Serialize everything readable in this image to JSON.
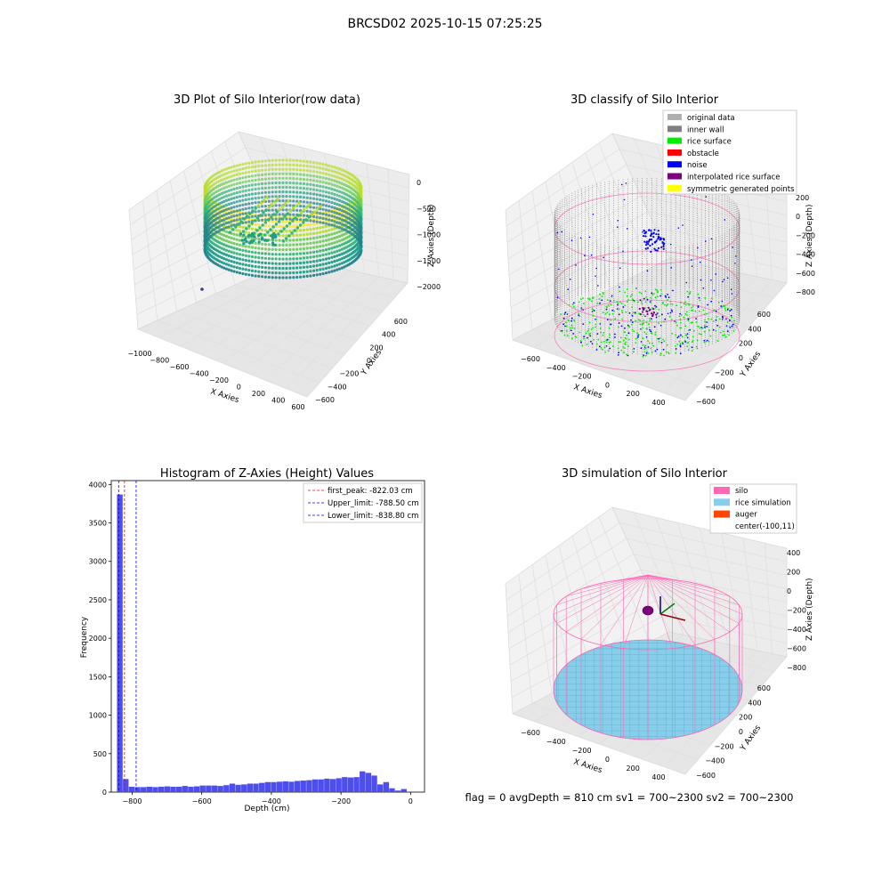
{
  "figure": {
    "suptitle": "BRCSD02 2025-10-15 07:25:25",
    "footer": "flag = 0     avgDepth = 810 cm  sv1 = 700~2300  sv2 = 700~2300"
  },
  "chart_data": [
    {
      "type": "scatter3d",
      "title": "3D Plot of Silo Interior(row data)",
      "xlabel": "X Axies",
      "ylabel": "Y Axies",
      "zlabel": "Z Axies (Depth)",
      "xticks": [
        "−1000",
        "−800",
        "−600",
        "−400",
        "−200",
        "0",
        "200",
        "400",
        "600"
      ],
      "yticks": [
        "−600",
        "−400",
        "−200",
        "0",
        "200",
        "400",
        "600"
      ],
      "zticks": [
        "0",
        "−500",
        "−1000",
        "−1500",
        "−2000"
      ],
      "xlim": [
        -1000,
        600
      ],
      "ylim": [
        -600,
        600
      ],
      "zlim": [
        -2300,
        0
      ],
      "colormap": "viridis"
    },
    {
      "type": "scatter3d",
      "title": "3D classify of Silo Interior",
      "xlabel": "X Axies",
      "ylabel": "Y Axies",
      "zlabel": "Z Axies (Depth)",
      "xticks": [
        "−600",
        "−400",
        "−200",
        "0",
        "200",
        "400"
      ],
      "yticks": [
        "−600",
        "−400",
        "−200",
        "0",
        "200",
        "400",
        "600"
      ],
      "zticks": [
        "200",
        "0",
        "−200",
        "−400",
        "−600",
        "−800"
      ],
      "legend": [
        {
          "label": "original data",
          "color": "#b0b0b0"
        },
        {
          "label": "inner wall",
          "color": "#808080"
        },
        {
          "label": "rice surface",
          "color": "#00ee00"
        },
        {
          "label": "obstacle",
          "color": "#ff0000"
        },
        {
          "label": "noise",
          "color": "#0000ff"
        },
        {
          "label": "interpolated rice surface",
          "color": "#800080"
        },
        {
          "label": "symmetric generated points",
          "color": "#ffff00"
        }
      ]
    },
    {
      "type": "bar",
      "title": "Histogram of Z-Axies (Height) Values",
      "xlabel": "Depth (cm)",
      "ylabel": "Frequency",
      "xlim": [
        -860,
        40
      ],
      "ylim": [
        0,
        4050
      ],
      "xticks": [
        -800,
        -600,
        -400,
        -200,
        0
      ],
      "yticks": [
        0,
        500,
        1000,
        1500,
        2000,
        2500,
        3000,
        3500,
        4000
      ],
      "bin_width": 17,
      "bins": [
        {
          "x": -835,
          "count": 3870
        },
        {
          "x": -818,
          "count": 170
        },
        {
          "x": -801,
          "count": 70
        },
        {
          "x": -784,
          "count": 65
        },
        {
          "x": -767,
          "count": 65
        },
        {
          "x": -750,
          "count": 70
        },
        {
          "x": -733,
          "count": 65
        },
        {
          "x": -716,
          "count": 70
        },
        {
          "x": -699,
          "count": 75
        },
        {
          "x": -682,
          "count": 70
        },
        {
          "x": -665,
          "count": 70
        },
        {
          "x": -648,
          "count": 80
        },
        {
          "x": -631,
          "count": 70
        },
        {
          "x": -614,
          "count": 75
        },
        {
          "x": -597,
          "count": 85
        },
        {
          "x": -580,
          "count": 85
        },
        {
          "x": -563,
          "count": 85
        },
        {
          "x": -546,
          "count": 80
        },
        {
          "x": -529,
          "count": 90
        },
        {
          "x": -512,
          "count": 110
        },
        {
          "x": -495,
          "count": 95
        },
        {
          "x": -478,
          "count": 100
        },
        {
          "x": -461,
          "count": 110
        },
        {
          "x": -444,
          "count": 110
        },
        {
          "x": -427,
          "count": 120
        },
        {
          "x": -410,
          "count": 130
        },
        {
          "x": -393,
          "count": 130
        },
        {
          "x": -376,
          "count": 135
        },
        {
          "x": -359,
          "count": 140
        },
        {
          "x": -342,
          "count": 135
        },
        {
          "x": -325,
          "count": 145
        },
        {
          "x": -308,
          "count": 150
        },
        {
          "x": -291,
          "count": 155
        },
        {
          "x": -274,
          "count": 165
        },
        {
          "x": -257,
          "count": 165
        },
        {
          "x": -240,
          "count": 175
        },
        {
          "x": -223,
          "count": 170
        },
        {
          "x": -206,
          "count": 180
        },
        {
          "x": -189,
          "count": 195
        },
        {
          "x": -172,
          "count": 190
        },
        {
          "x": -155,
          "count": 195
        },
        {
          "x": -138,
          "count": 270
        },
        {
          "x": -121,
          "count": 250
        },
        {
          "x": -104,
          "count": 215
        },
        {
          "x": -87,
          "count": 100
        },
        {
          "x": -70,
          "count": 130
        },
        {
          "x": -53,
          "count": 50
        },
        {
          "x": -36,
          "count": 20
        },
        {
          "x": -19,
          "count": 40
        }
      ],
      "bar_color": "#4444ee",
      "vlines": [
        {
          "label": "first_peak: -822.03 cm",
          "x": -822.03,
          "color": "#ff0000"
        },
        {
          "label": "Upper_limit: -788.50 cm",
          "x": -788.5,
          "color": "#0000ff"
        },
        {
          "label": "Lower_limit: -838.80 cm",
          "x": -838.8,
          "color": "#0000ff"
        }
      ],
      "legend_position": "top-right"
    },
    {
      "type": "surface3d",
      "title": "3D simulation of Silo Interior",
      "xlabel": "X Axies",
      "ylabel": "Y Axies",
      "zlabel": "Z Axies (Depth)",
      "xticks": [
        "−600",
        "−400",
        "−200",
        "0",
        "200",
        "400"
      ],
      "yticks": [
        "−600",
        "−400",
        "−200",
        "0",
        "200",
        "400",
        "600"
      ],
      "zticks": [
        "400",
        "200",
        "0",
        "−200",
        "−400",
        "−600",
        "−800"
      ],
      "legend": [
        {
          "label": "silo",
          "color": "#ff69b4"
        },
        {
          "label": "rice simulation",
          "color": "#87ceeb"
        },
        {
          "label": "auger",
          "color": "#ff4500"
        },
        {
          "label": "center(-100,11)",
          "color": "none"
        }
      ]
    }
  ]
}
